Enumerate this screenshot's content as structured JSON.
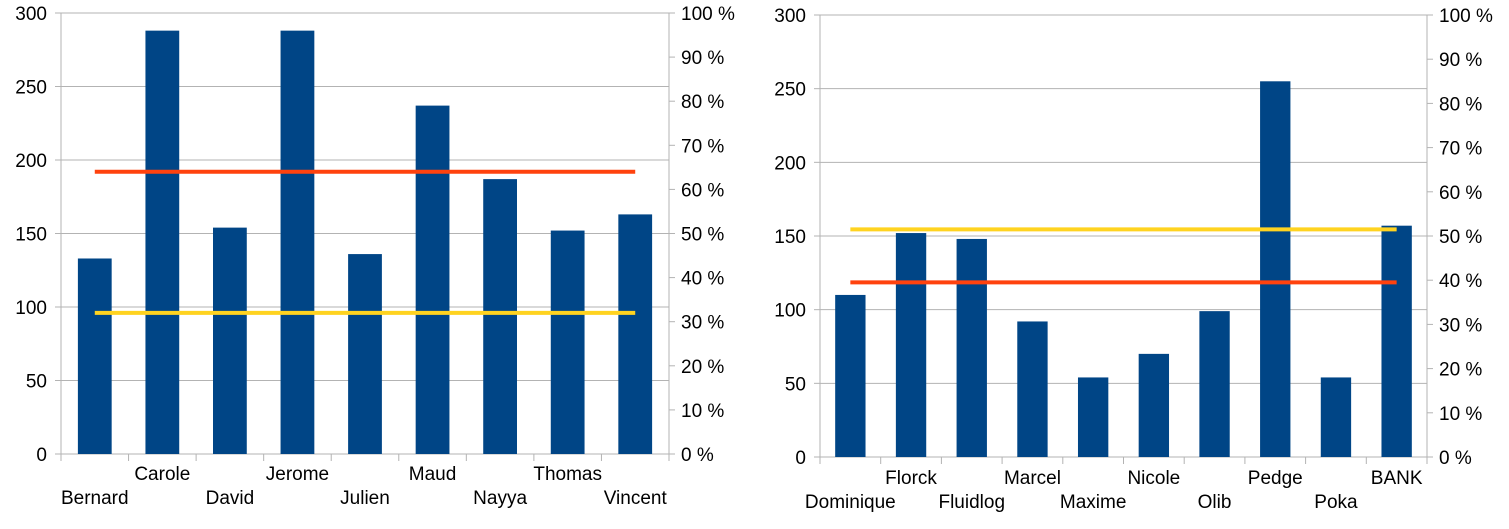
{
  "chart_data": [
    {
      "type": "bar",
      "categories": [
        "Bernard",
        "Carole",
        "David",
        "Jerome",
        "Julien",
        "Maud",
        "Nayya",
        "Thomas",
        "Vincent"
      ],
      "series": [
        {
          "values": [
            133,
            288,
            154,
            288,
            136,
            237,
            187,
            152,
            163
          ]
        }
      ],
      "lines": [
        {
          "axis": "right",
          "value": 64,
          "color": "#ff420e"
        },
        {
          "axis": "right",
          "value": 32,
          "color": "#ffd320"
        }
      ],
      "ylim": [
        0,
        300
      ],
      "yticks": [
        "0",
        "50",
        "100",
        "150",
        "200",
        "250",
        "300"
      ],
      "y2lim": [
        0,
        100
      ],
      "y2ticks": [
        "0 %",
        "10 %",
        "20 %",
        "30 %",
        "40 %",
        "50 %",
        "60 %",
        "70 %",
        "80 %",
        "90 %",
        "100 %"
      ],
      "bar_color": "#004586",
      "grid": true
    },
    {
      "type": "bar",
      "categories": [
        "Dominique",
        "Florck",
        "Fluidlog",
        "Marcel",
        "Maxime",
        "Nicole",
        "Olib",
        "Pedge",
        "Poka",
        "BANK"
      ],
      "series": [
        {
          "values": [
            110,
            152,
            148,
            92,
            54,
            70,
            99,
            255,
            54,
            157
          ]
        }
      ],
      "lines": [
        {
          "axis": "right",
          "value": 51.5,
          "color": "#ffd320"
        },
        {
          "axis": "right",
          "value": 39.5,
          "color": "#ff420e"
        }
      ],
      "ylim": [
        0,
        300
      ],
      "yticks": [
        "0",
        "50",
        "100",
        "150",
        "200",
        "250",
        "300"
      ],
      "y2lim": [
        0,
        100
      ],
      "y2ticks": [
        "0 %",
        "10 %",
        "20 %",
        "30 %",
        "40 %",
        "50 %",
        "60 %",
        "70 %",
        "80 %",
        "90 %",
        "100 %"
      ],
      "bar_color": "#004586",
      "grid": true
    }
  ]
}
